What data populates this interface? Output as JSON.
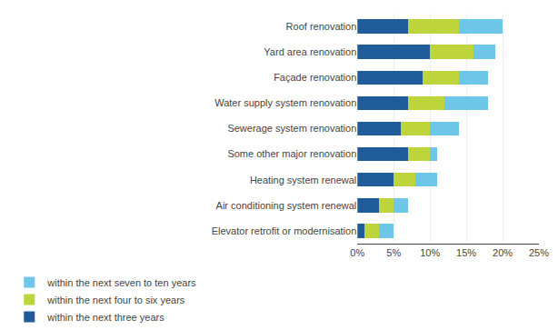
{
  "chart_data": {
    "type": "bar",
    "orientation": "horizontal",
    "stacked": true,
    "categories": [
      "Roof renovation",
      "Yard area renovation",
      "Façade renovation",
      "Water supply system renovation",
      "Sewerage system renovation",
      "Some other major renovation",
      "Heating system renewal",
      "Air conditioning system renewal",
      "Elevator retrofit or modernisation"
    ],
    "series": [
      {
        "name": "within the next three years",
        "color": "#1f5c99",
        "values": [
          7,
          10,
          9,
          7,
          6,
          7,
          5,
          3,
          1
        ]
      },
      {
        "name": "within the next four to six years",
        "color": "#bdd43a",
        "values": [
          7,
          6,
          5,
          5,
          4,
          3,
          3,
          2,
          2
        ]
      },
      {
        "name": "within the next seven to ten years",
        "color": "#6ec6e8",
        "values": [
          6,
          3,
          4,
          6,
          4,
          1,
          3,
          2,
          2
        ]
      }
    ],
    "xlim": [
      0,
      25
    ],
    "xticks": [
      {
        "value": 0,
        "label": "0%"
      },
      {
        "value": 5,
        "label": "5%"
      },
      {
        "value": 10,
        "label": "10%"
      },
      {
        "value": 15,
        "label": "15%"
      },
      {
        "value": 20,
        "label": "20%"
      },
      {
        "value": 25,
        "label": "25%"
      }
    ],
    "grid": true,
    "legend": "bottom"
  }
}
